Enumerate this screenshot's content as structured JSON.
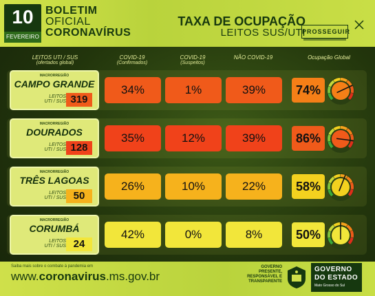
{
  "header": {
    "date_day": "10",
    "date_month": "FEVEREIRO",
    "title_line1": "BOLETIM",
    "title_line2": "OFICIAL",
    "title_line3": "CORONAVÍRUS",
    "rate_title": "TAXA DE OCUPAÇÃO",
    "rate_subtitle": "LEITOS SUS/UTI",
    "brand": "PROSSEGUIR"
  },
  "columns": {
    "leitos": {
      "line1": "LEITOS UTI / SUS",
      "line2": "(ofertados global)"
    },
    "covid_confirmados": {
      "line1": "COVID-19",
      "line2": "(Confirmados)"
    },
    "covid_suspeitos": {
      "line1": "COVID-19",
      "line2": "(Suspeitos)"
    },
    "nao_covid": {
      "line1": "NÃO COVID-19",
      "line2": ""
    },
    "global": {
      "line1": "Ocupação Global",
      "line2": ""
    }
  },
  "regions": [
    {
      "macro": "MACRORREGIÃO",
      "name": "CAMPO GRANDE",
      "leitos_label1": "LEITOS",
      "leitos_label2": "UTI / SUS",
      "leitos": "319",
      "confirmados": "34%",
      "suspeitos": "1%",
      "nao_covid": "39%",
      "global": "74%",
      "global_value": 74
    },
    {
      "macro": "MACRORREGIÃO",
      "name": "DOURADOS",
      "leitos_label1": "LEITOS",
      "leitos_label2": "UTI / SUS",
      "leitos": "128",
      "confirmados": "35%",
      "suspeitos": "12%",
      "nao_covid": "39%",
      "global": "86%",
      "global_value": 86
    },
    {
      "macro": "MACRORREGIÃO",
      "name": "TRÊS LAGOAS",
      "leitos_label1": "LEITOS",
      "leitos_label2": "UTI / SUS",
      "leitos": "50",
      "confirmados": "26%",
      "suspeitos": "10%",
      "nao_covid": "22%",
      "global": "58%",
      "global_value": 58
    },
    {
      "macro": "MACRORREGIÃO",
      "name": "CORUMBÁ",
      "leitos_label1": "LEITOS",
      "leitos_label2": "UTI / SUS",
      "leitos": "24",
      "confirmados": "42%",
      "suspeitos": "0%",
      "nao_covid": "8%",
      "global": "50%",
      "global_value": 50
    }
  ],
  "colors": {
    "high": "#f05a1a",
    "highish": "#f57f17",
    "mid": "#f6a21c",
    "low": "#f3d11f",
    "lowest": "#f2e63a",
    "dark_green": "#16380f"
  },
  "footer": {
    "small": "Saiba mais sobre o combate à pandemia em",
    "url_prefix": "www.",
    "url_bold": "coronavirus",
    "url_suffix": ".ms.gov.br",
    "slogan1": "GOVERNO",
    "slogan2": "PRESENTE,",
    "slogan3": "RESPONSÁVEL E",
    "slogan4": "TRANSPARENTE",
    "gov1": "GOVERNO",
    "gov2": "DO ESTADO",
    "gov3": "Mato Grosso do Sul"
  }
}
